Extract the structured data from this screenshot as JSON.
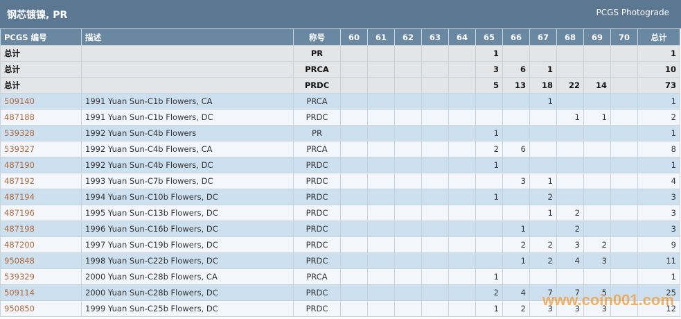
{
  "header": {
    "title": "钢芯镀镍, PR",
    "source": "PCGS Photograde"
  },
  "table": {
    "columns": [
      "PCGS 编号",
      "描述",
      "称号",
      "60",
      "61",
      "62",
      "63",
      "64",
      "65",
      "66",
      "67",
      "68",
      "69",
      "70",
      "总计"
    ],
    "totals": [
      [
        "总计",
        null,
        "PR",
        null,
        null,
        null,
        null,
        null,
        1,
        null,
        null,
        null,
        null,
        null,
        1
      ],
      [
        "总计",
        null,
        "PRCA",
        null,
        null,
        null,
        null,
        null,
        3,
        6,
        1,
        null,
        null,
        null,
        10
      ],
      [
        "总计",
        null,
        "PRDC",
        null,
        null,
        null,
        null,
        null,
        5,
        13,
        18,
        22,
        14,
        null,
        73
      ]
    ],
    "rows": [
      [
        "509140",
        "1991 Yuan Sun-C1b Flowers, CA",
        "PRCA",
        null,
        null,
        null,
        null,
        null,
        null,
        null,
        1,
        null,
        null,
        null,
        1
      ],
      [
        "487188",
        "1991 Yuan Sun-C1b Flowers, DC",
        "PRDC",
        null,
        null,
        null,
        null,
        null,
        null,
        null,
        null,
        1,
        1,
        null,
        2
      ],
      [
        "539328",
        "1992 Yuan Sun-C4b Flowers",
        "PR",
        null,
        null,
        null,
        null,
        null,
        1,
        null,
        null,
        null,
        null,
        null,
        1
      ],
      [
        "539327",
        "1992 Yuan Sun-C4b Flowers, CA",
        "PRCA",
        null,
        null,
        null,
        null,
        null,
        2,
        6,
        null,
        null,
        null,
        null,
        8
      ],
      [
        "487190",
        "1992 Yuan Sun-C4b Flowers, DC",
        "PRDC",
        null,
        null,
        null,
        null,
        null,
        1,
        null,
        null,
        null,
        null,
        null,
        1
      ],
      [
        "487192",
        "1993 Yuan Sun-C7b Flowers, DC",
        "PRDC",
        null,
        null,
        null,
        null,
        null,
        null,
        3,
        1,
        null,
        null,
        null,
        4
      ],
      [
        "487194",
        "1994 Yuan Sun-C10b Flowers, DC",
        "PRDC",
        null,
        null,
        null,
        null,
        null,
        1,
        null,
        2,
        null,
        null,
        null,
        3
      ],
      [
        "487196",
        "1995 Yuan Sun-C13b Flowers, DC",
        "PRDC",
        null,
        null,
        null,
        null,
        null,
        null,
        null,
        1,
        2,
        null,
        null,
        3
      ],
      [
        "487198",
        "1996 Yuan Sun-C16b Flowers, DC",
        "PRDC",
        null,
        null,
        null,
        null,
        null,
        null,
        1,
        null,
        2,
        null,
        null,
        3
      ],
      [
        "487200",
        "1997 Yuan Sun-C19b Flowers, DC",
        "PRDC",
        null,
        null,
        null,
        null,
        null,
        null,
        2,
        2,
        3,
        2,
        null,
        9
      ],
      [
        "950848",
        "1998 Yuan Sun-C22b Flowers, DC",
        "PRDC",
        null,
        null,
        null,
        null,
        null,
        null,
        1,
        2,
        4,
        3,
        null,
        11
      ],
      [
        "539329",
        "2000 Yuan Sun-C28b Flowers, CA",
        "PRCA",
        null,
        null,
        null,
        null,
        null,
        1,
        null,
        null,
        null,
        null,
        null,
        1
      ],
      [
        "509114",
        "2000 Yuan Sun-C28b Flowers, DC",
        "PRDC",
        null,
        null,
        null,
        null,
        null,
        2,
        4,
        7,
        7,
        5,
        null,
        25
      ],
      [
        "950850",
        "1999 Yuan Sun-C25b Flowers, DC",
        "PRDC",
        null,
        null,
        null,
        null,
        null,
        1,
        2,
        3,
        3,
        3,
        null,
        12
      ]
    ]
  },
  "watermark": "www.coin001.com"
}
